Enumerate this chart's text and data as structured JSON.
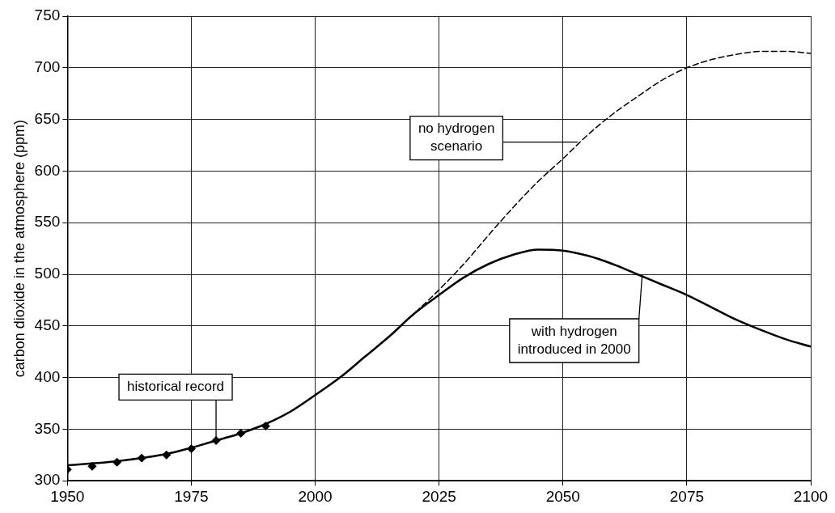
{
  "chart_data": {
    "type": "line",
    "ylabel": "carbon dioxide in the atmosphere (ppm)",
    "xlim": [
      1950,
      2100
    ],
    "xticks": [
      1950,
      1975,
      2000,
      2025,
      2050,
      2075,
      2100
    ],
    "ylim": [
      300,
      750
    ],
    "yticks": [
      300,
      350,
      400,
      450,
      500,
      550,
      600,
      650,
      700,
      750
    ],
    "grid": true,
    "legend": false,
    "series": [
      {
        "type": "line",
        "color": "#000000",
        "line_style": "solid",
        "marker": "none",
        "x": [
          1950,
          1960,
          1970,
          1975,
          1980,
          1985,
          1990,
          1995,
          2000,
          2005,
          2010,
          2015,
          2020,
          2025,
          2030,
          2035,
          2040,
          2045,
          2050,
          2055,
          2060,
          2065,
          2070,
          2075,
          2080,
          2085,
          2090,
          2095,
          2100
        ],
        "values": [
          315,
          319,
          326,
          332,
          339,
          346,
          355,
          367,
          383,
          400,
          420,
          440,
          462,
          480,
          497,
          510,
          519,
          524,
          523,
          518,
          510,
          500,
          490,
          480,
          468,
          456,
          446,
          437,
          430
        ]
      },
      {
        "type": "line",
        "color": "#000000",
        "line_style": "dashed",
        "marker": "none",
        "x": [
          2015,
          2020,
          2025,
          2030,
          2035,
          2040,
          2045,
          2050,
          2055,
          2060,
          2065,
          2070,
          2075,
          2080,
          2085,
          2090,
          2095,
          2100
        ],
        "values": [
          440,
          462,
          485,
          510,
          538,
          565,
          590,
          612,
          635,
          655,
          672,
          688,
          700,
          708,
          713,
          716,
          716,
          714
        ]
      },
      {
        "type": "scatter",
        "color": "#000000",
        "marker": "diamond",
        "x": [
          1950,
          1955,
          1960,
          1965,
          1970,
          1975,
          1980,
          1985,
          1990
        ],
        "values": [
          311,
          314,
          318,
          322,
          325,
          331,
          339,
          346,
          353
        ]
      }
    ],
    "annotations": [
      {
        "text": "no hydrogen scenario",
        "x": 2053,
        "y": 628
      },
      {
        "text": "with hydrogen introduced in 2000",
        "x": 2066,
        "y": 500
      },
      {
        "text": "historical record",
        "x": 1980,
        "y": 339
      }
    ]
  }
}
